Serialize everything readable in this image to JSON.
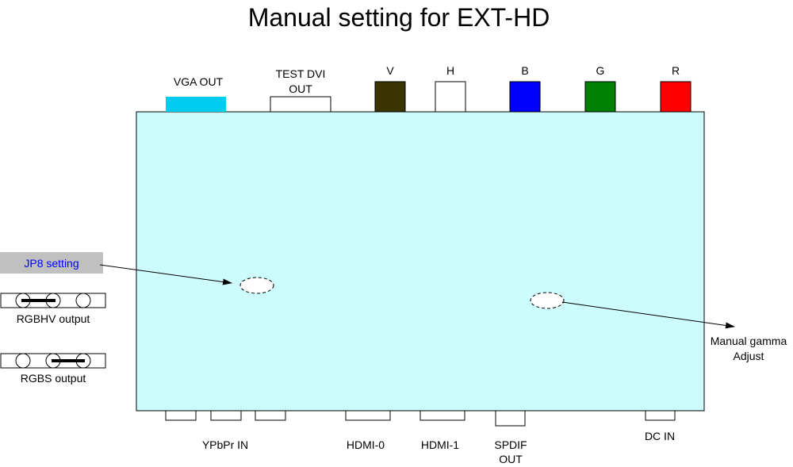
{
  "title": "Manual setting for EXT-HD",
  "board_color": "#ccfcfc",
  "top_ports": {
    "vga_out": {
      "label": "VGA OUT",
      "color": "#00ccf0"
    },
    "test_dvi_out": {
      "line1": "TEST DVI",
      "line2": "OUT",
      "color": "#ffffff"
    },
    "v": {
      "label": "V",
      "color": "#3a3500"
    },
    "h": {
      "label": "H",
      "color": "#ffffff"
    },
    "b": {
      "label": "B",
      "color": "#0000ff"
    },
    "g": {
      "label": "G",
      "color": "#008000"
    },
    "r": {
      "label": "R",
      "color": "#ff0000"
    }
  },
  "bottom_ports": {
    "ypbpr_in": "YPbPr IN",
    "hdmi_0": "HDMI-0",
    "hdmi_1": "HDMI-1",
    "spdif_out": {
      "line1": "SPDIF",
      "line2": "OUT"
    },
    "dc_in": "DC IN"
  },
  "jp8": {
    "setting_label": "JP8 setting",
    "setting_label_color": "#0000ff",
    "setting_box_color": "#c0c0c0",
    "rgbhv_output": "RGBHV output",
    "rgbs_output": "RGBS output"
  },
  "gamma": {
    "line1": "Manual gamma",
    "line2": "Adjust"
  }
}
